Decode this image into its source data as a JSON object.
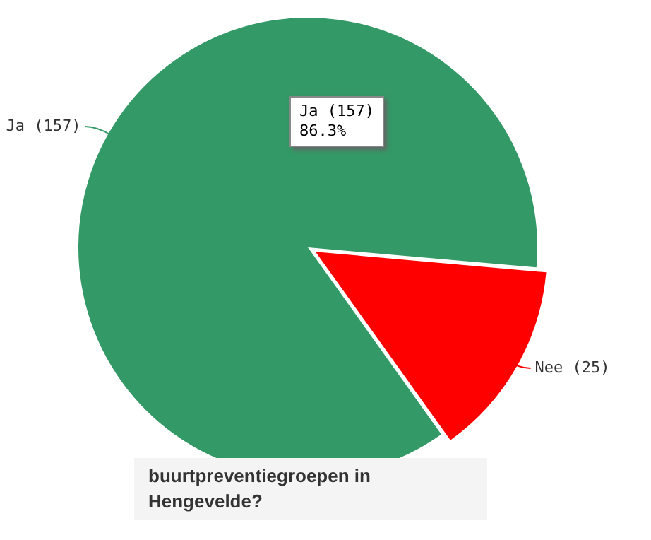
{
  "chart_data": {
    "type": "pie",
    "title": "buurtpreventiegroepen in Hengevelde?",
    "categories": [
      "Ja",
      "Nee"
    ],
    "values": [
      157,
      25
    ],
    "colors": [
      "#339966",
      "#ff0000"
    ],
    "value_labels": [
      "(157)",
      "(25)"
    ],
    "legend": false,
    "annotations": [
      "Ja (157)\n86.3%"
    ]
  }
}
